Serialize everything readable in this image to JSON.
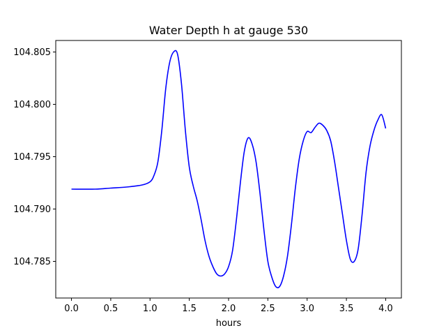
{
  "chart_data": {
    "type": "line",
    "title": "Water Depth h at gauge 530",
    "xlabel": "hours",
    "ylabel": "",
    "xlim": [
      -0.2,
      4.2
    ],
    "ylim": [
      104.7815,
      104.8061
    ],
    "xticks": [
      0.0,
      0.5,
      1.0,
      1.5,
      2.0,
      2.5,
      3.0,
      3.5,
      4.0
    ],
    "xtick_labels": [
      "0.0",
      "0.5",
      "1.0",
      "1.5",
      "2.0",
      "2.5",
      "3.0",
      "3.5",
      "4.0"
    ],
    "yticks": [
      104.785,
      104.79,
      104.795,
      104.8,
      104.805
    ],
    "ytick_labels": [
      "104.785",
      "104.790",
      "104.795",
      "104.800",
      "104.805"
    ],
    "grid": false,
    "series": [
      {
        "color": "#0000ff",
        "x": [
          0.0,
          0.3,
          0.5,
          0.7,
          0.9,
          1.0,
          1.05,
          1.1,
          1.15,
          1.2,
          1.25,
          1.3,
          1.35,
          1.4,
          1.45,
          1.5,
          1.55,
          1.6,
          1.65,
          1.7,
          1.75,
          1.8,
          1.85,
          1.9,
          1.95,
          2.0,
          2.05,
          2.1,
          2.15,
          2.2,
          2.25,
          2.3,
          2.35,
          2.4,
          2.45,
          2.5,
          2.55,
          2.6,
          2.65,
          2.7,
          2.75,
          2.8,
          2.85,
          2.9,
          2.95,
          3.0,
          3.05,
          3.1,
          3.15,
          3.2,
          3.25,
          3.3,
          3.35,
          3.4,
          3.45,
          3.5,
          3.55,
          3.6,
          3.65,
          3.7,
          3.75,
          3.8,
          3.85,
          3.9,
          3.95,
          4.0
        ],
        "y": [
          104.7919,
          104.7919,
          104.792,
          104.7921,
          104.7923,
          104.7926,
          104.7932,
          104.7945,
          104.7975,
          104.8015,
          104.804,
          104.805,
          104.8048,
          104.802,
          104.7975,
          104.794,
          104.7922,
          104.7908,
          104.789,
          104.787,
          104.7855,
          104.7845,
          104.7838,
          104.7836,
          104.7838,
          104.7845,
          104.786,
          104.789,
          104.7925,
          104.7955,
          104.7968,
          104.7962,
          104.7945,
          104.7915,
          104.788,
          104.785,
          104.7835,
          104.7826,
          104.7826,
          104.7836,
          104.7855,
          104.7885,
          104.792,
          104.7948,
          104.7965,
          104.7974,
          104.7973,
          104.7978,
          104.7982,
          104.798,
          104.7975,
          104.7965,
          104.7945,
          104.792,
          104.7895,
          104.787,
          104.7852,
          104.785,
          104.7862,
          104.7895,
          104.7935,
          104.796,
          104.7975,
          104.7985,
          104.799,
          104.7977
        ]
      }
    ]
  }
}
